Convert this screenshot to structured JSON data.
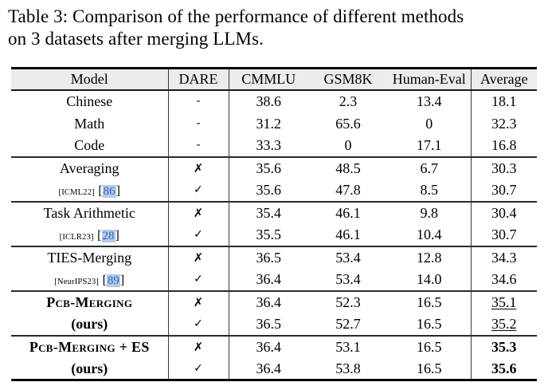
{
  "caption": {
    "line1": "Table 3: Comparison of the performance of different methods",
    "line2": "on 3 datasets after merging LLMs."
  },
  "colors": {
    "header_bg": "#ececec",
    "cite_text": "#3060c0",
    "cite_highlight": "#b3cce8",
    "rule": "#000000"
  },
  "table": {
    "headers": [
      "Model",
      "DARE",
      "CMMLU",
      "GSM8K",
      "Human-Eval",
      "Average"
    ],
    "marks": {
      "no": "✗",
      "yes": "✓",
      "none": "-"
    },
    "rows": [
      {
        "model": "Chinese",
        "dare": "-",
        "cmmlu": "38.6",
        "gsm8k": "2.3",
        "human_eval": "13.4",
        "average": "18.1"
      },
      {
        "model": "Math",
        "dare": "-",
        "cmmlu": "31.2",
        "gsm8k": "65.6",
        "human_eval": "0",
        "average": "32.3"
      },
      {
        "model": "Code",
        "dare": "-",
        "cmmlu": "33.3",
        "gsm8k": "0",
        "human_eval": "17.1",
        "average": "16.8"
      },
      {
        "model": "Averaging",
        "dare": "✗",
        "cmmlu": "35.6",
        "gsm8k": "48.5",
        "human_eval": "6.7",
        "average": "30.3"
      },
      {
        "venue": "[ICML22]",
        "cite_open": "[",
        "cite_num": "86",
        "cite_close": "]",
        "dare": "✓",
        "cmmlu": "35.6",
        "gsm8k": "47.8",
        "human_eval": "8.5",
        "average": "30.7"
      },
      {
        "model": "Task Arithmetic",
        "dare": "✗",
        "cmmlu": "35.4",
        "gsm8k": "46.1",
        "human_eval": "9.8",
        "average": "30.4"
      },
      {
        "venue": "[ICLR23]",
        "cite_open": "[",
        "cite_num": "28",
        "cite_close": "]",
        "dare": "✓",
        "cmmlu": "35.5",
        "gsm8k": "46.1",
        "human_eval": "10.4",
        "average": "30.7"
      },
      {
        "model": "TIES-Merging",
        "dare": "✗",
        "cmmlu": "36.5",
        "gsm8k": "53.4",
        "human_eval": "12.8",
        "average": "34.3"
      },
      {
        "venue": "[NeurIPS23]",
        "cite_open": "[",
        "cite_num": "89",
        "cite_close": "]",
        "dare": "✓",
        "cmmlu": "36.4",
        "gsm8k": "53.4",
        "human_eval": "14.0",
        "average": "34.6"
      },
      {
        "model": "Pcb-Merging",
        "dare": "✗",
        "cmmlu": "36.4",
        "gsm8k": "52.3",
        "human_eval": "16.5",
        "average": "35.1"
      },
      {
        "model": "(ours)",
        "dare": "✓",
        "cmmlu": "36.5",
        "gsm8k": "52.7",
        "human_eval": "16.5",
        "average": "35.2"
      },
      {
        "model": "Pcb-Merging + ES",
        "dare": "✗",
        "cmmlu": "36.4",
        "gsm8k": "53.1",
        "human_eval": "16.5",
        "average": "35.3"
      },
      {
        "model": "(ours)",
        "dare": "✓",
        "cmmlu": "36.4",
        "gsm8k": "53.8",
        "human_eval": "16.5",
        "average": "35.6"
      }
    ]
  }
}
